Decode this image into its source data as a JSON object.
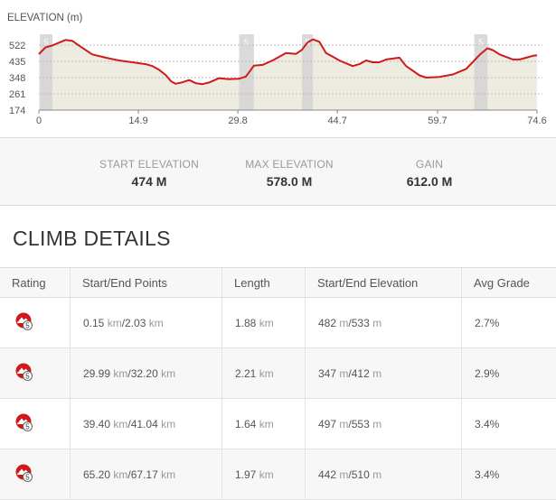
{
  "elevation_chart": {
    "title": "ELEVATION (m)",
    "y_ticks": [
      "522",
      "435",
      "348",
      "261",
      "174"
    ],
    "x_ticks": [
      "0",
      "14.9",
      "29.8",
      "44.7",
      "59.7",
      "74.6"
    ],
    "climb_marker_label": "5",
    "colors": {
      "line": "#d0191b",
      "fill": "#e8e4d6",
      "band": "#d4d4d4"
    }
  },
  "chart_data": {
    "type": "area",
    "title": "ELEVATION (m)",
    "xlabel": "",
    "ylabel": "ELEVATION (m)",
    "xlim": [
      0,
      74.6
    ],
    "ylim": [
      174,
      580
    ],
    "x": [
      0,
      1,
      2,
      3,
      4,
      5,
      6,
      8,
      10,
      12,
      14,
      16,
      17,
      18,
      19,
      19.8,
      20.5,
      21.5,
      22.5,
      23.5,
      24.5,
      25.5,
      27,
      28.5,
      30,
      31,
      32.2,
      33.5,
      35,
      37,
      38.5,
      39.4,
      40.2,
      41.04,
      42,
      43,
      44,
      45,
      47,
      48,
      49,
      50,
      51,
      52,
      54,
      55,
      57,
      58,
      59,
      60,
      62,
      64,
      65.2,
      66,
      67.17,
      68,
      69,
      71,
      72,
      73,
      74,
      74.6
    ],
    "y": [
      474,
      510,
      520,
      535,
      550,
      545,
      520,
      472,
      455,
      440,
      430,
      420,
      410,
      390,
      362,
      328,
      315,
      323,
      335,
      318,
      313,
      322,
      345,
      340,
      342,
      354,
      412,
      416,
      440,
      480,
      475,
      497,
      535,
      553,
      540,
      480,
      460,
      440,
      410,
      420,
      440,
      430,
      430,
      445,
      455,
      410,
      360,
      348,
      350,
      352,
      365,
      395,
      440,
      470,
      505,
      495,
      472,
      445,
      445,
      455,
      465,
      468
    ],
    "series": [
      {
        "name": "Elevation",
        "values": [
          474,
          510,
          520,
          535,
          550,
          545,
          520,
          472,
          455,
          440,
          430,
          420,
          410,
          390,
          362,
          328,
          315,
          323,
          335,
          318,
          313,
          322,
          345,
          340,
          342,
          354,
          412,
          416,
          440,
          480,
          475,
          497,
          535,
          553,
          540,
          480,
          460,
          440,
          410,
          420,
          440,
          430,
          430,
          445,
          455,
          410,
          360,
          348,
          350,
          352,
          365,
          395,
          440,
          470,
          505,
          495,
          472,
          445,
          445,
          455,
          465,
          468
        ]
      }
    ],
    "y_tick_values": [
      522,
      435,
      348,
      261,
      174
    ],
    "x_tick_values": [
      0,
      14.9,
      29.8,
      44.7,
      59.7,
      74.6
    ],
    "climb_segments": [
      [
        0.15,
        2.03
      ],
      [
        29.99,
        32.2
      ],
      [
        39.4,
        41.04
      ],
      [
        65.2,
        67.17
      ]
    ],
    "grid": true,
    "legend": "none"
  },
  "stats": [
    {
      "label": "START ELEVATION",
      "value": "474 M"
    },
    {
      "label": "MAX ELEVATION",
      "value": "578.0 M"
    },
    {
      "label": "GAIN",
      "value": "612.0 M"
    }
  ],
  "climb_details": {
    "title": "CLIMB DETAILS",
    "headers": [
      "Rating",
      "Start/End Points",
      "Length",
      "Start/End Elevation",
      "Avg Grade"
    ],
    "rows": [
      {
        "rating": "5",
        "start": "0.15",
        "end": "2.03",
        "length": "1.88",
        "elev_start": "482",
        "elev_end": "533",
        "grade": "2.7%"
      },
      {
        "rating": "5",
        "start": "29.99",
        "end": "32.20",
        "length": "2.21",
        "elev_start": "347",
        "elev_end": "412",
        "grade": "2.9%"
      },
      {
        "rating": "5",
        "start": "39.40",
        "end": "41.04",
        "length": "1.64",
        "elev_start": "497",
        "elev_end": "553",
        "grade": "3.4%"
      },
      {
        "rating": "5",
        "start": "65.20",
        "end": "67.17",
        "length": "1.97",
        "elev_start": "442",
        "elev_end": "510",
        "grade": "3.4%"
      }
    ],
    "units": {
      "distance": "km",
      "elevation": "m"
    }
  }
}
